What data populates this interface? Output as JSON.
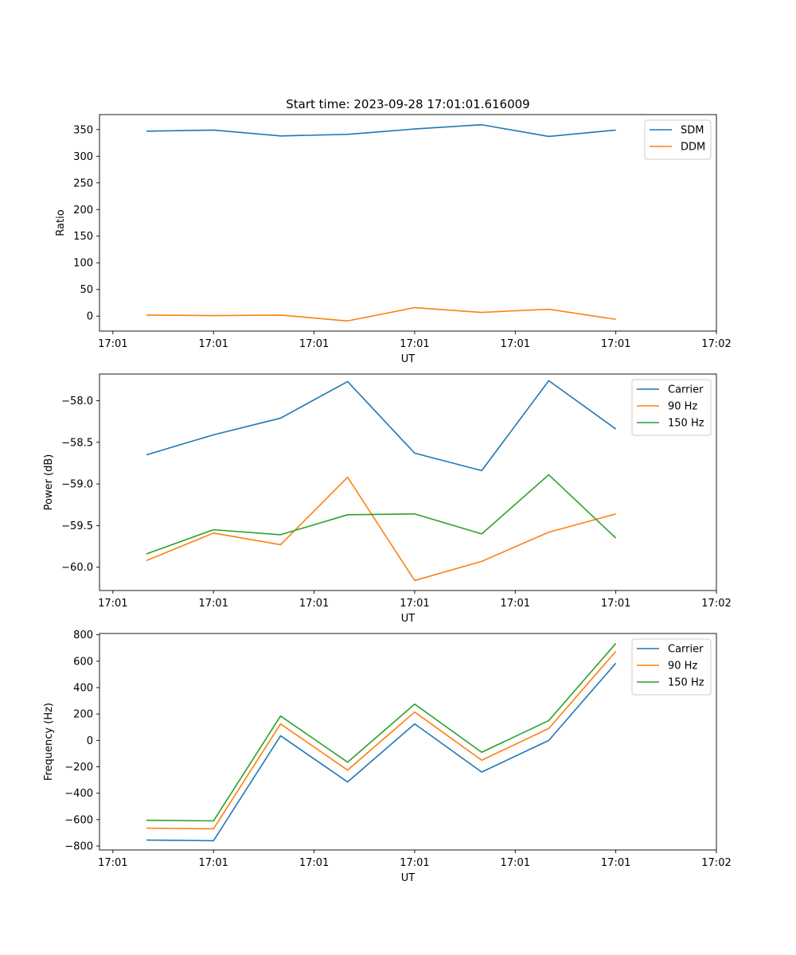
{
  "chart_data": [
    {
      "type": "line",
      "title": "Start time: 2023-09-28 17:01:01.616009",
      "xlabel": "UT",
      "ylabel": "Ratio",
      "xlim": [
        -0.2,
        9.0
      ],
      "ylim": [
        -28,
        378
      ],
      "x": [
        0.5,
        1.5,
        2.5,
        3.5,
        4.5,
        5.5,
        6.5,
        7.5
      ],
      "x_ticks": [
        0,
        1.5,
        3,
        4.5,
        6,
        7.5,
        9
      ],
      "x_tick_labels": [
        "17:01",
        "17:01",
        "17:01",
        "17:01",
        "17:01",
        "17:01",
        "17:02"
      ],
      "y_ticks": [
        0,
        50,
        100,
        150,
        200,
        250,
        300,
        350
      ],
      "y_tick_labels": [
        "0",
        "50",
        "100",
        "150",
        "200",
        "250",
        "300",
        "350"
      ],
      "legend": "top-right",
      "series": [
        {
          "name": "SDM",
          "color": "#1f77b4",
          "values": [
            347,
            349,
            338,
            341,
            351,
            359,
            337,
            349
          ]
        },
        {
          "name": "DDM",
          "color": "#ff7f0e",
          "values": [
            2,
            1,
            2,
            -9,
            16,
            7,
            13,
            -6
          ]
        }
      ]
    },
    {
      "type": "line",
      "title": "",
      "xlabel": "UT",
      "ylabel": "Power (dB)",
      "xlim": [
        -0.2,
        9.0
      ],
      "ylim": [
        -60.28,
        -57.68
      ],
      "x": [
        0.5,
        1.5,
        2.5,
        3.5,
        4.5,
        5.5,
        6.5,
        7.5
      ],
      "x_ticks": [
        0,
        1.5,
        3,
        4.5,
        6,
        7.5,
        9
      ],
      "x_tick_labels": [
        "17:01",
        "17:01",
        "17:01",
        "17:01",
        "17:01",
        "17:01",
        "17:02"
      ],
      "y_ticks": [
        -60.0,
        -59.5,
        -59.0,
        -58.5,
        -58.0
      ],
      "y_tick_labels": [
        "−60.0",
        "−59.5",
        "−59.0",
        "−58.5",
        "−58.0"
      ],
      "legend": "top-right",
      "series": [
        {
          "name": "Carrier",
          "color": "#1f77b4",
          "values": [
            -58.65,
            -58.41,
            -58.21,
            -57.77,
            -58.63,
            -58.84,
            -57.76,
            -58.34
          ]
        },
        {
          "name": "90 Hz",
          "color": "#ff7f0e",
          "values": [
            -59.92,
            -59.59,
            -59.73,
            -58.92,
            -60.16,
            -59.93,
            -59.58,
            -59.36
          ]
        },
        {
          "name": "150 Hz",
          "color": "#2ca02c",
          "values": [
            -59.84,
            -59.55,
            -59.61,
            -59.37,
            -59.36,
            -59.6,
            -58.89,
            -59.65
          ]
        }
      ]
    },
    {
      "type": "line",
      "title": "",
      "xlabel": "UT",
      "ylabel": "Frequency (Hz)",
      "xlim": [
        -0.2,
        9.0
      ],
      "ylim": [
        -830,
        810
      ],
      "x": [
        0.5,
        1.5,
        2.5,
        3.5,
        4.5,
        5.5,
        6.5,
        7.5
      ],
      "x_ticks": [
        0,
        1.5,
        3,
        4.5,
        6,
        7.5,
        9
      ],
      "x_tick_labels": [
        "17:01",
        "17:01",
        "17:01",
        "17:01",
        "17:01",
        "17:01",
        "17:02"
      ],
      "y_ticks": [
        -800,
        -600,
        -400,
        -200,
        0,
        200,
        400,
        600,
        800
      ],
      "y_tick_labels": [
        "−800",
        "−600",
        "−400",
        "−200",
        "0",
        "200",
        "400",
        "600",
        "800"
      ],
      "legend": "top-right",
      "series": [
        {
          "name": "Carrier",
          "color": "#1f77b4",
          "values": [
            -755,
            -760,
            35,
            -315,
            125,
            -240,
            0,
            585
          ]
        },
        {
          "name": "90 Hz",
          "color": "#ff7f0e",
          "values": [
            -665,
            -670,
            125,
            -225,
            215,
            -150,
            90,
            675
          ]
        },
        {
          "name": "150 Hz",
          "color": "#2ca02c",
          "values": [
            -605,
            -610,
            185,
            -165,
            275,
            -90,
            150,
            735
          ]
        }
      ]
    }
  ]
}
